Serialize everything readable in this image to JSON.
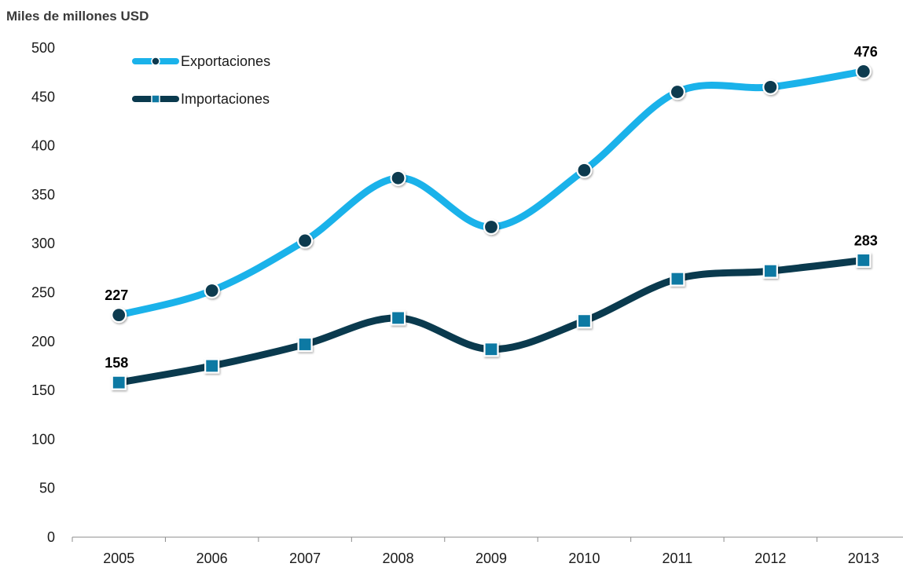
{
  "chart_data": {
    "type": "line",
    "unit_label": "Miles de millones USD",
    "categories": [
      "2005",
      "2006",
      "2007",
      "2008",
      "2009",
      "2010",
      "2011",
      "2012",
      "2013"
    ],
    "yticks": [
      "0",
      "50",
      "100",
      "150",
      "200",
      "250",
      "300",
      "350",
      "400",
      "450",
      "500"
    ],
    "ylim": [
      0,
      500
    ],
    "grid": false,
    "legend_position": "top-left",
    "series": [
      {
        "name": "Exportaciones",
        "color": "#1ab2ea",
        "marker": "circle",
        "marker_color": "#0e3a4f",
        "values": [
          227,
          252,
          303,
          367,
          317,
          375,
          455,
          460,
          476
        ],
        "labels": {
          "0": "227",
          "8": "476"
        }
      },
      {
        "name": "Importaciones",
        "color": "#0a3a4e",
        "marker": "square",
        "marker_color": "#0f79a3",
        "values": [
          158,
          175,
          197,
          224,
          192,
          221,
          264,
          272,
          283
        ],
        "labels": {
          "0": "158",
          "8": "283"
        }
      }
    ]
  }
}
